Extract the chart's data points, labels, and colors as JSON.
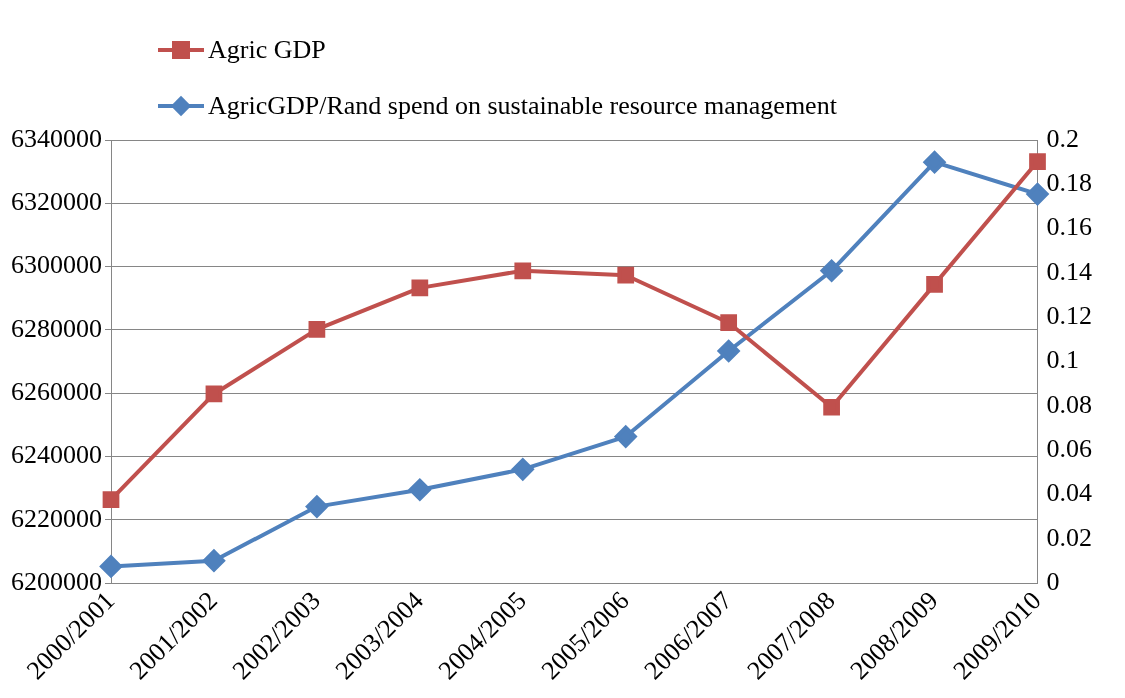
{
  "chart_data": {
    "type": "line",
    "categories": [
      "2000/2001",
      "2001/2002",
      "2002/2003",
      "2003/2004",
      "2004/2005",
      "2005/2006",
      "2006/2007",
      "2007/2008",
      "2008/2009",
      "2009/2010"
    ],
    "series": [
      {
        "name": "Agric GDP",
        "color": "#c0504d",
        "marker": "square",
        "values": [
          6226400,
          6259800,
          6280200,
          6293300,
          6298700,
          6297300,
          6282300,
          6255600,
          6294400,
          6333200
        ]
      },
      {
        "name": "AgricGDP/Rand spend on sustainable resource management",
        "color": "#4f81bd",
        "marker": "diamond",
        "axis": "y2",
        "values": [
          0.0076,
          0.0102,
          0.0346,
          0.0422,
          0.0514,
          0.0662,
          0.1048,
          0.141,
          0.19,
          0.1756
        ]
      }
    ],
    "ylim": [
      6200000,
      6340000
    ],
    "yticks": [
      6200000,
      6220000,
      6240000,
      6260000,
      6280000,
      6300000,
      6320000,
      6340000
    ],
    "y2lim": [
      0,
      0.2
    ],
    "y2ticks": [
      0,
      0.02,
      0.04,
      0.06,
      0.08,
      0.1,
      0.12,
      0.14,
      0.16,
      0.18,
      0.2
    ],
    "grid": "y",
    "legend": "top left",
    "line_style": "solid"
  }
}
